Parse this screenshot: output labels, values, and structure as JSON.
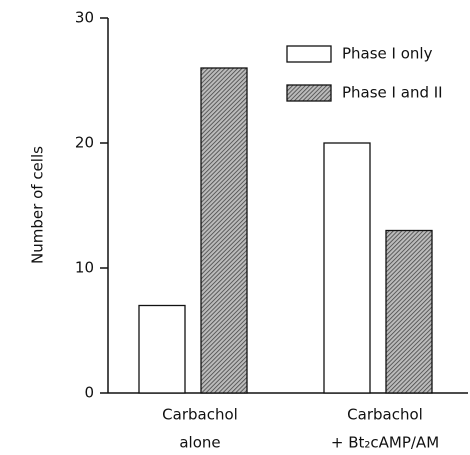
{
  "chart_data": {
    "type": "bar",
    "ylabel": "Number of cells",
    "categories": [
      [
        "Carbachol",
        "alone"
      ],
      [
        "Carbachol",
        "+ Bt₂cAMP/AM"
      ]
    ],
    "series": [
      {
        "name": "Phase I only",
        "color": "#ffffff",
        "values": [
          7,
          20
        ]
      },
      {
        "name": "Phase I and II",
        "color": "#555555",
        "hatch": true,
        "values": [
          26,
          13
        ]
      }
    ],
    "ylim": [
      0,
      30
    ],
    "yticks": [
      0,
      10,
      20,
      30
    ],
    "legend": "upper right"
  }
}
